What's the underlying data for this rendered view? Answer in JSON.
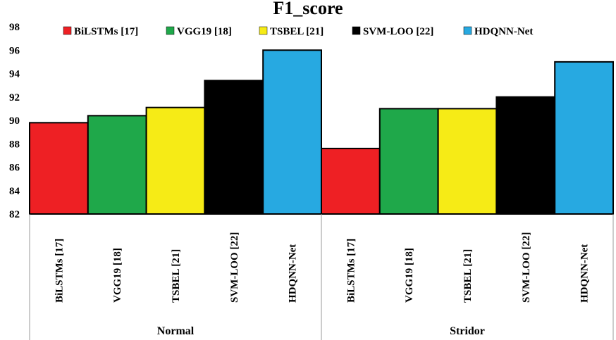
{
  "chart_data": {
    "type": "bar",
    "title": "F1_score",
    "xlabel": "",
    "ylabel": "",
    "ylim": [
      82,
      98
    ],
    "yticks": [
      82,
      84,
      86,
      88,
      90,
      92,
      94,
      96,
      98
    ],
    "grid": false,
    "legend_position": "top",
    "groups": [
      "Normal",
      "Stridor"
    ],
    "categories": [
      "BiLSTMs [17]",
      "VGG19 [18]",
      "TSBEL [21]",
      "SVM-LOO [22]",
      "HDQNN-Net"
    ],
    "colors": [
      "#ee2024",
      "#1fa84a",
      "#f6eb16",
      "#000000",
      "#27a9e1"
    ],
    "series": [
      {
        "group": "Normal",
        "values": [
          89.8,
          90.4,
          91.1,
          93.4,
          96.0
        ]
      },
      {
        "group": "Stridor",
        "values": [
          87.6,
          91.0,
          91.0,
          92.0,
          95.0
        ]
      }
    ]
  }
}
